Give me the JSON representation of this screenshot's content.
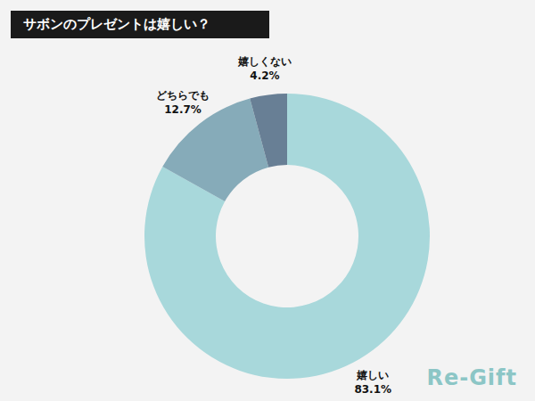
{
  "chart_data": {
    "type": "donut",
    "title": "サボンのプレゼントは嬉しい？",
    "categories": [
      "嬉しい",
      "どちらでも",
      "嬉しくない"
    ],
    "values": [
      83.1,
      12.7,
      4.2
    ],
    "value_labels": [
      "83.1%",
      "12.7%",
      "4.2%"
    ],
    "colors": [
      "#a8d8db",
      "#86abb9",
      "#687f95"
    ],
    "data_labels": true,
    "annotation": "Re-Gift"
  }
}
